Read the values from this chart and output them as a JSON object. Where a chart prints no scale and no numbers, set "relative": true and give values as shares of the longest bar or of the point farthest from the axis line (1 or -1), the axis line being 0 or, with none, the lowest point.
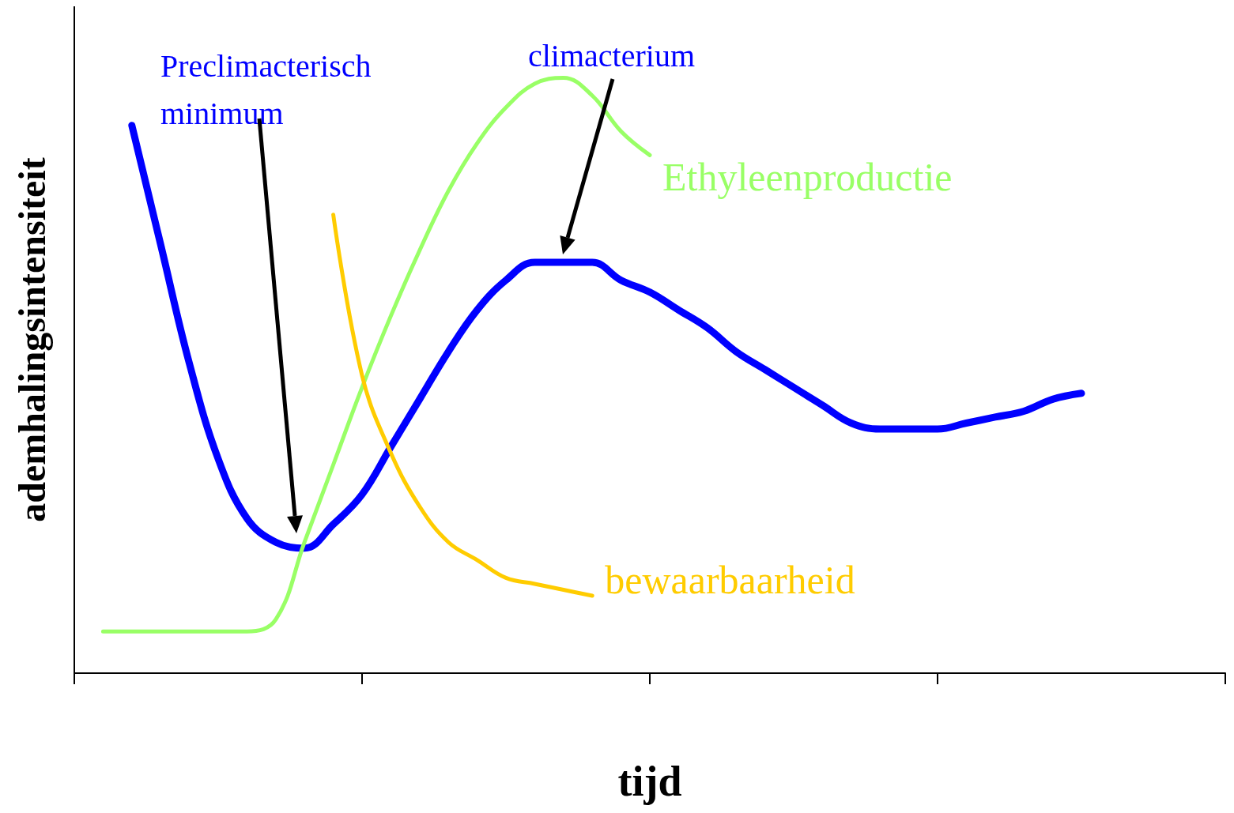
{
  "chart_data": {
    "type": "line",
    "relative": true,
    "xlabel": "tijd",
    "ylabel": "ademhalingsintensiteit",
    "annotations": [
      "Preclimacterisch minimum",
      "climacterium"
    ],
    "categories": [
      null,
      null,
      null,
      null,
      null,
      null,
      null,
      null,
      null,
      null,
      null,
      null,
      null,
      null,
      null,
      null,
      null,
      null,
      null,
      null,
      null,
      null,
      null,
      null,
      null,
      null,
      null,
      null,
      null,
      null,
      null,
      null,
      null,
      null,
      null,
      null,
      null,
      null,
      null,
      null,
      null
    ],
    "series": [
      {
        "color": "#0000ff",
        "values": [
          null,
          null,
          0.92,
          0.72,
          0.52,
          0.36,
          0.26,
          0.22,
          0.21,
          0.25,
          0.3,
          0.38,
          0.46,
          0.54,
          0.61,
          0.66,
          0.69,
          0.69,
          0.69,
          0.66,
          0.64,
          0.61,
          0.58,
          0.54,
          0.51,
          0.48,
          0.45,
          0.42,
          0.41,
          0.41,
          0.41,
          0.42,
          0.43,
          0.44,
          0.46,
          0.47,
          null,
          null,
          null,
          null,
          null
        ]
      },
      {
        "name": "Ethyleenproductie",
        "color": "#99ff66",
        "values": [
          null,
          0.07,
          0.07,
          0.07,
          0.07,
          0.07,
          0.07,
          0.09,
          0.22,
          0.35,
          0.48,
          0.6,
          0.71,
          0.81,
          0.89,
          0.95,
          0.99,
          1.0,
          0.97,
          0.91,
          0.87,
          null,
          null,
          null,
          null,
          null,
          null,
          null,
          null,
          null,
          null,
          null,
          null,
          null,
          null,
          null,
          null,
          null,
          null,
          null,
          null
        ]
      },
      {
        "name": "bewaarbaarheid",
        "color": "#ffcc00",
        "values": [
          null,
          null,
          null,
          null,
          null,
          null,
          null,
          null,
          null,
          0.77,
          0.5,
          0.37,
          0.28,
          0.22,
          0.19,
          0.16,
          0.15,
          0.14,
          0.13,
          null,
          null,
          null,
          null,
          null,
          null,
          null,
          null,
          null,
          null,
          null,
          null,
          null,
          null,
          null,
          null,
          null,
          null,
          null,
          null,
          null,
          null
        ]
      }
    ]
  }
}
